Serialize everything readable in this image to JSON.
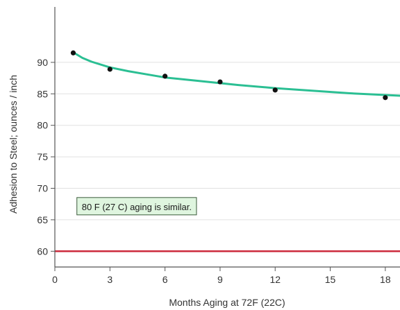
{
  "chart_data": {
    "type": "scatter",
    "xlabel": "Months Aging at 72F (22C)",
    "ylabel": "Adhesion to Steel;  ounces / inch",
    "xlim": [
      0,
      18.8
    ],
    "ylim": [
      57.5,
      98.8
    ],
    "xticks": [
      0,
      3,
      6,
      9,
      12,
      15,
      18
    ],
    "yticks": [
      60,
      65,
      70,
      75,
      80,
      85,
      90
    ],
    "grid": "horizontal",
    "points": [
      {
        "x": 1,
        "y": 91.5
      },
      {
        "x": 3,
        "y": 88.9
      },
      {
        "x": 6,
        "y": 87.8
      },
      {
        "x": 9,
        "y": 86.9
      },
      {
        "x": 12,
        "y": 85.6
      },
      {
        "x": 18,
        "y": 84.4
      }
    ],
    "fit_curve": {
      "type": "trend",
      "points": [
        {
          "x": 1,
          "y": 91.6
        },
        {
          "x": 1.5,
          "y": 90.7
        },
        {
          "x": 2,
          "y": 90.1
        },
        {
          "x": 3,
          "y": 89.2
        },
        {
          "x": 4,
          "y": 88.6
        },
        {
          "x": 5,
          "y": 88.1
        },
        {
          "x": 6,
          "y": 87.6
        },
        {
          "x": 8,
          "y": 87.0
        },
        {
          "x": 10,
          "y": 86.4
        },
        {
          "x": 12,
          "y": 85.9
        },
        {
          "x": 14,
          "y": 85.5
        },
        {
          "x": 16,
          "y": 85.1
        },
        {
          "x": 18.8,
          "y": 84.7
        }
      ],
      "color": "#2bbf93"
    },
    "reference_line": {
      "y": 60,
      "color": "#cc2a3c"
    },
    "point_color": "#111111",
    "annotation": {
      "text": "80 F (27 C) aging is similar.",
      "x": 1.2,
      "y": 67.1,
      "background": "#dff5df",
      "border": "#3a5a3a"
    }
  }
}
